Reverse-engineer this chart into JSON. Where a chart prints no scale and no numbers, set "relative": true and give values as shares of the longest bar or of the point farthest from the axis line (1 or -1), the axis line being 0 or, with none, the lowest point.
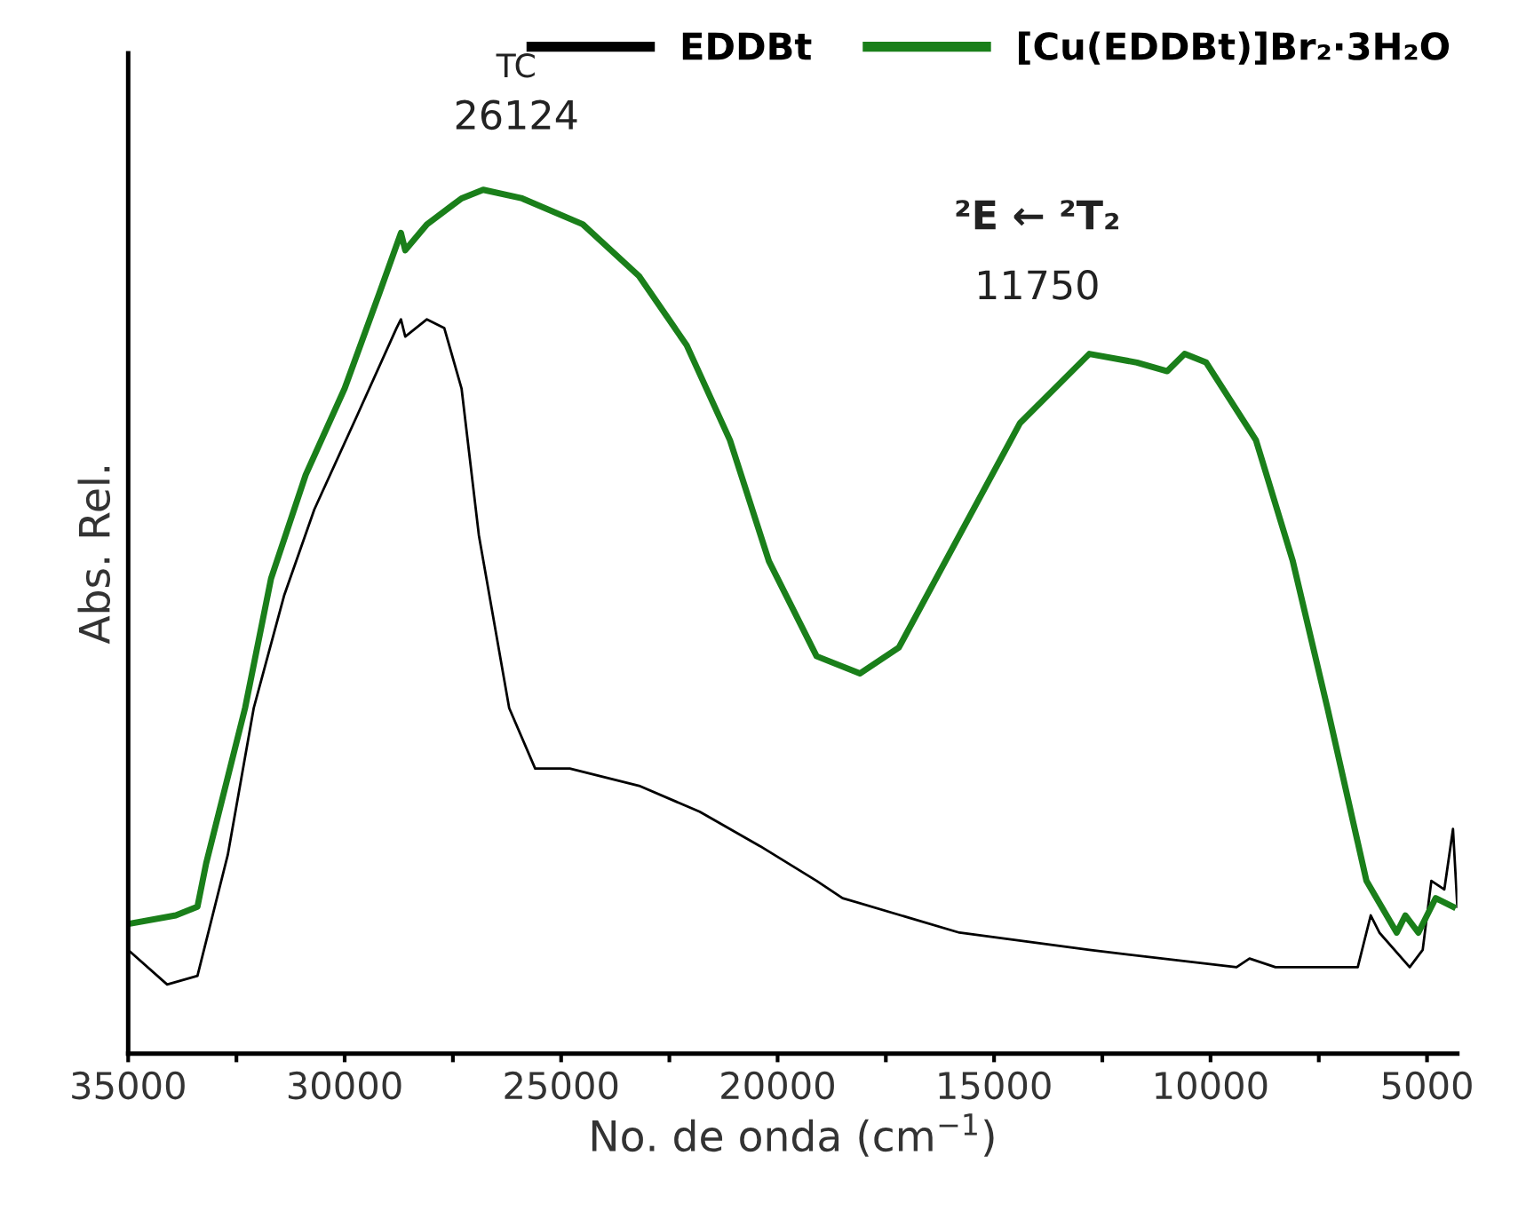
{
  "chart_data": {
    "type": "line",
    "relative": true,
    "xlabel": "No. de onda (cm$^{−1}$)",
    "ylabel": "Abs. Rel.",
    "xlim": [
      35000,
      4300
    ],
    "xticks": [
      35000,
      {
        "value": 32500,
        "label": null
      },
      30000,
      {
        "value": 27500,
        "label": null
      },
      25000,
      {
        "value": 22500,
        "label": null
      },
      20000,
      {
        "value": 17500,
        "label": null
      },
      15000,
      {
        "value": 12500,
        "label": null
      },
      10000,
      {
        "value": 7500,
        "label": null
      },
      5000
    ],
    "legend": "top right",
    "grid": false,
    "marker": "none",
    "line_style": "solid",
    "annotations": [
      "TC",
      "26124",
      "²E ← ²T₂",
      "11750"
    ],
    "series": [
      {
        "name": "EDDBt",
        "color": "#000000",
        "x": [
          35000,
          34100,
          33400,
          32700,
          32100,
          31400,
          30700,
          29700,
          28800,
          28700,
          28600,
          28100,
          27700,
          27300,
          26900,
          26200,
          25600,
          24800,
          23200,
          21800,
          20400,
          19100,
          18500,
          15800,
          12800,
          9400,
          9100,
          8500,
          7600,
          6600,
          6300,
          6100,
          5400,
          5100,
          4900,
          4600,
          4400,
          4300
        ],
        "values": [
          0.12,
          0.08,
          0.09,
          0.23,
          0.4,
          0.53,
          0.63,
          0.74,
          0.84,
          0.85,
          0.83,
          0.85,
          0.84,
          0.77,
          0.6,
          0.4,
          0.33,
          0.33,
          0.31,
          0.28,
          0.24,
          0.2,
          0.18,
          0.14,
          0.12,
          0.1,
          0.11,
          0.1,
          0.1,
          0.1,
          0.16,
          0.14,
          0.1,
          0.12,
          0.2,
          0.19,
          0.26,
          0.17
        ]
      },
      {
        "name": "[Cu(EDDBt)]Br₂·3H₂O",
        "color": "#1a7f1a",
        "x": [
          35000,
          33900,
          33400,
          33200,
          32300,
          31700,
          30900,
          30000,
          29200,
          28700,
          28600,
          28100,
          27300,
          26800,
          25900,
          24500,
          23200,
          22100,
          21100,
          20200,
          19100,
          18100,
          17200,
          15800,
          14400,
          12800,
          11700,
          11000,
          10600,
          10100,
          8950,
          8100,
          7300,
          6400,
          5700,
          5500,
          5200,
          4800,
          4400
        ],
        "values": [
          0.15,
          0.16,
          0.17,
          0.22,
          0.4,
          0.55,
          0.67,
          0.77,
          0.88,
          0.95,
          0.93,
          0.96,
          0.99,
          1.0,
          0.99,
          0.96,
          0.9,
          0.82,
          0.71,
          0.57,
          0.46,
          0.44,
          0.47,
          0.6,
          0.73,
          0.81,
          0.8,
          0.79,
          0.81,
          0.8,
          0.71,
          0.57,
          0.4,
          0.2,
          0.14,
          0.16,
          0.14,
          0.18,
          0.17
        ]
      }
    ]
  }
}
